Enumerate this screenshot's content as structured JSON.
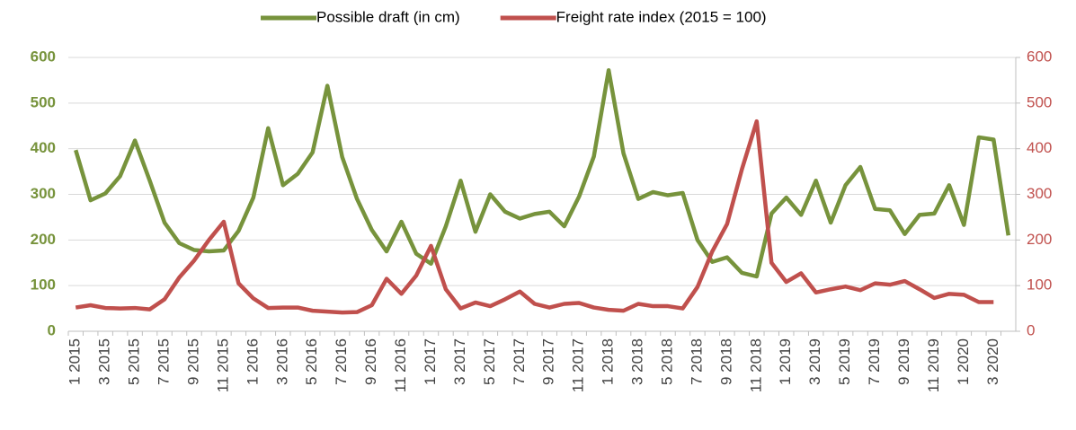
{
  "chart_data": {
    "type": "line",
    "categories": [
      "1 2015",
      null,
      "3 2015",
      null,
      "5 2015",
      null,
      "7 2015",
      null,
      "9 2015",
      null,
      "11 2015",
      null,
      "1 2016",
      null,
      "3 2016",
      null,
      "5 2016",
      null,
      "7 2016",
      null,
      "9 2016",
      null,
      "11 2016",
      null,
      "1 2017",
      null,
      "3 2017",
      null,
      "5 2017",
      null,
      "7 2017",
      null,
      "9 2017",
      null,
      "11 2017",
      null,
      "1 2018",
      null,
      "3 2018",
      null,
      "5 2018",
      null,
      "7 2018",
      null,
      "9 2018",
      null,
      "11 2018",
      null,
      "1 2019",
      null,
      "3 2019",
      null,
      "5 2019",
      null,
      "7 2019",
      null,
      "9 2019",
      null,
      "11 2019",
      null,
      "1 2020",
      null,
      "3 2020",
      null
    ],
    "series": [
      {
        "name": "Possible draft (in cm)",
        "color": "#77933c",
        "values": [
          397,
          287,
          302,
          340,
          418,
          330,
          238,
          193,
          178,
          175,
          177,
          220,
          293,
          445,
          320,
          345,
          392,
          538,
          382,
          290,
          222,
          175,
          240,
          170,
          148,
          230,
          330,
          218,
          300,
          262,
          247,
          257,
          262,
          230,
          295,
          383,
          572,
          390,
          290,
          305,
          298,
          303,
          200,
          152,
          162,
          128,
          120,
          258,
          293,
          255,
          330,
          238,
          320,
          360,
          268,
          265,
          213,
          255,
          258,
          320,
          233,
          425,
          420,
          210
        ]
      },
      {
        "name": "Freight rate index (2015 = 100)",
        "color": "#c0504d",
        "axis": "y2",
        "values": [
          52,
          57,
          51,
          50,
          51,
          48,
          70,
          118,
          155,
          200,
          240,
          105,
          72,
          51,
          52,
          52,
          45,
          43,
          41,
          42,
          57,
          115,
          82,
          122,
          187,
          92,
          50,
          63,
          55,
          70,
          87,
          60,
          52,
          60,
          62,
          52,
          47,
          45,
          60,
          55,
          55,
          50,
          97,
          175,
          235,
          355,
          460,
          150,
          108,
          127,
          85,
          92,
          98,
          90,
          105,
          102,
          110,
          92,
          73,
          82,
          80,
          64,
          64,
          null
        ]
      }
    ],
    "ylim": [
      0,
      600
    ],
    "yticks": [
      0,
      100,
      200,
      300,
      400,
      500,
      600
    ],
    "y2lim": [
      0,
      600
    ],
    "y2ticks": [
      0,
      100,
      200,
      300,
      400,
      500,
      600
    ],
    "grid": true,
    "legend": "top"
  }
}
